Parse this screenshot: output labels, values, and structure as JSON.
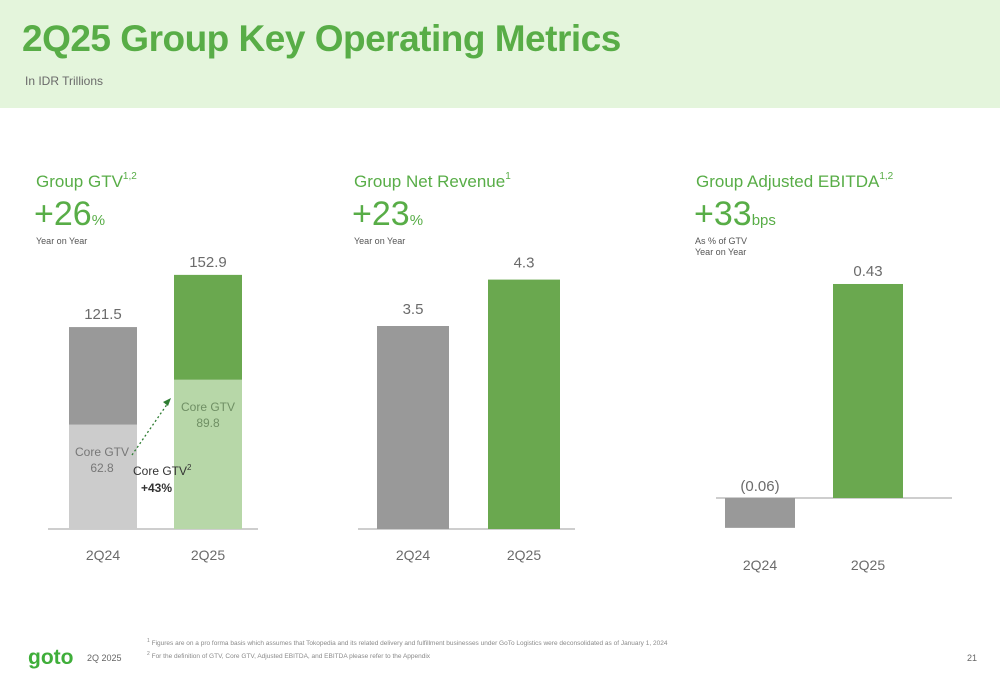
{
  "header": {
    "title": "2Q25 Group Key Operating Metrics",
    "subtitle": "In IDR Trillions"
  },
  "colors": {
    "brand_green": "#58ad47",
    "bar_green": "#6aa84f",
    "bar_light_green": "#b7d7a8",
    "bar_gray": "#999999",
    "bar_light_gray": "#cccccc",
    "header_bg": "#e4f5dc"
  },
  "panels": [
    {
      "title": "Group GTV",
      "title_sup": "1,2",
      "metric_value": "+26",
      "metric_unit": "%",
      "note_lines": [
        "Year on Year"
      ]
    },
    {
      "title": "Group Net Revenue",
      "title_sup": "1",
      "metric_value": "+23",
      "metric_unit": "%",
      "note_lines": [
        "Year on Year"
      ]
    },
    {
      "title": "Group Adjusted EBITDA",
      "title_sup": "1,2",
      "metric_value": "+33",
      "metric_unit": "bps",
      "note_lines": [
        "As % of GTV",
        "Year on Year"
      ]
    }
  ],
  "chart_data": [
    {
      "type": "bar",
      "stacked": true,
      "categories": [
        "2Q24",
        "2Q25"
      ],
      "totals": [
        121.5,
        152.9
      ],
      "total_labels": [
        "121.5",
        "152.9"
      ],
      "series": [
        {
          "name": "Core GTV",
          "values": [
            62.8,
            89.8
          ],
          "labels": [
            "62.8",
            "89.8"
          ],
          "colors": [
            "#cccccc",
            "#b7d7a8"
          ]
        },
        {
          "values": [
            58.7,
            63.1
          ],
          "colors": [
            "#999999",
            "#6aa84f"
          ]
        }
      ],
      "annotation": {
        "label": "Core GTV",
        "label_sup": "2",
        "value": "+43%"
      },
      "ylim": [
        0,
        160
      ]
    },
    {
      "type": "bar",
      "categories": [
        "2Q24",
        "2Q25"
      ],
      "values": [
        3.5,
        4.3
      ],
      "labels": [
        "3.5",
        "4.3"
      ],
      "colors": [
        "#999999",
        "#6aa84f"
      ],
      "ylim": [
        0,
        4.5
      ]
    },
    {
      "type": "bar",
      "categories": [
        "2Q24",
        "2Q25"
      ],
      "values": [
        -0.06,
        0.43
      ],
      "labels": [
        "(0.06)",
        "0.43"
      ],
      "colors": [
        "#999999",
        "#6aa84f"
      ],
      "ylim": [
        -0.1,
        0.5
      ]
    }
  ],
  "footer": {
    "logo_text": "goto",
    "period": "2Q 2025",
    "page_number": "21",
    "footnote_1_marker": "1",
    "footnote_1": "Figures are on a pro forma basis which assumes that Tokopedia and its related delivery and fulfillment businesses under GoTo Logistics were deconsolidated as of January 1, 2024",
    "footnote_2_marker": "2",
    "footnote_2": "For the definition of GTV, Core GTV, Adjusted EBITDA, and EBITDA please refer to the Appendix"
  }
}
